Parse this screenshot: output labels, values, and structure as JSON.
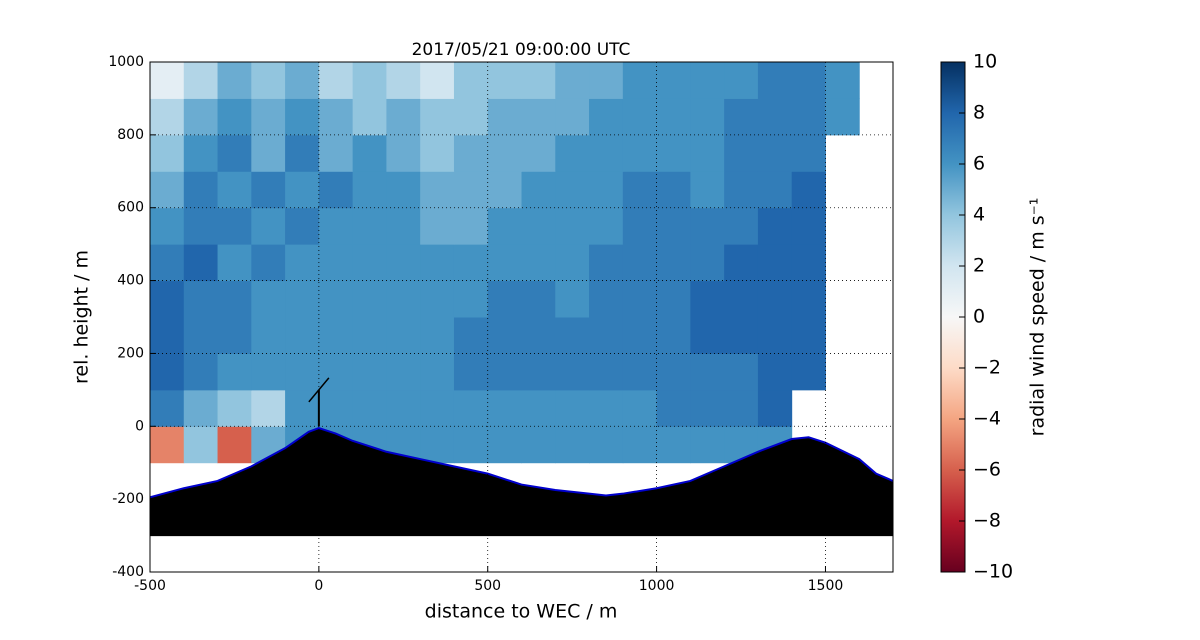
{
  "chart_data": {
    "type": "heatmap",
    "title": "2017/05/21 09:00:00 UTC",
    "x_label": "distance to WEC / m",
    "y_label": "rel. height / m",
    "xlim": [
      -500,
      1700
    ],
    "xticks": [
      -500,
      0,
      500,
      1000,
      1500
    ],
    "ylim": [
      -400,
      1000
    ],
    "yticks": [
      -400,
      -200,
      0,
      200,
      400,
      600,
      800,
      1000
    ],
    "grid": true,
    "x": [
      -450,
      -350,
      -250,
      -150,
      -50,
      50,
      150,
      250,
      350,
      450,
      550,
      650,
      750,
      850,
      950,
      1050,
      1150,
      1250,
      1350,
      1450,
      1550
    ],
    "y": [
      -50,
      50,
      150,
      250,
      350,
      450,
      550,
      650,
      750,
      850,
      950
    ],
    "values": [
      [
        -5,
        4,
        -6,
        5,
        6,
        6,
        6,
        6,
        6,
        6,
        6,
        6,
        6,
        6,
        6,
        6,
        6,
        6,
        6,
        null,
        null
      ],
      [
        7,
        5,
        4,
        3,
        6,
        6,
        6,
        6,
        6,
        6,
        6,
        6,
        6,
        6,
        6,
        7,
        7,
        7,
        8,
        null,
        null
      ],
      [
        8,
        7,
        6,
        6,
        6,
        6,
        6,
        6,
        6,
        7,
        7,
        7,
        7,
        7,
        7,
        7,
        7,
        7,
        8,
        8,
        null
      ],
      [
        8,
        7,
        7,
        6,
        6,
        6,
        6,
        6,
        6,
        7,
        7,
        7,
        7,
        7,
        7,
        7,
        8,
        8,
        8,
        8,
        null
      ],
      [
        8,
        7,
        7,
        6,
        6,
        6,
        6,
        6,
        6,
        6,
        7,
        7,
        6,
        7,
        7,
        7,
        8,
        8,
        8,
        8,
        null
      ],
      [
        7,
        8,
        6,
        7,
        6,
        6,
        6,
        6,
        6,
        6,
        6,
        6,
        6,
        7,
        7,
        7,
        7,
        8,
        8,
        8,
        null
      ],
      [
        6,
        7,
        7,
        6,
        7,
        6,
        6,
        6,
        5,
        5,
        6,
        6,
        6,
        6,
        7,
        7,
        7,
        7,
        8,
        8,
        null
      ],
      [
        5,
        7,
        6,
        7,
        6,
        7,
        6,
        6,
        5,
        5,
        5,
        6,
        6,
        6,
        7,
        7,
        6,
        7,
        7,
        8,
        null
      ],
      [
        4,
        6,
        7,
        5,
        7,
        5,
        6,
        5,
        4,
        5,
        5,
        5,
        6,
        6,
        6,
        6,
        6,
        7,
        7,
        7,
        null
      ],
      [
        3,
        5,
        6,
        5,
        6,
        5,
        4,
        5,
        4,
        4,
        5,
        5,
        5,
        6,
        6,
        6,
        6,
        7,
        7,
        7,
        6
      ],
      [
        1,
        3,
        5,
        4,
        5,
        3,
        4,
        3,
        2,
        4,
        4,
        4,
        5,
        5,
        6,
        6,
        6,
        6,
        7,
        7,
        6
      ]
    ],
    "terrain": {
      "x": [
        -500,
        -400,
        -300,
        -200,
        -100,
        -30,
        0,
        50,
        100,
        200,
        300,
        400,
        500,
        600,
        700,
        800,
        850,
        900,
        1000,
        1100,
        1200,
        1300,
        1400,
        1450,
        1500,
        1600,
        1650,
        1700
      ],
      "y": [
        -195,
        -170,
        -150,
        -110,
        -60,
        -15,
        -5,
        -20,
        -40,
        -70,
        -90,
        -110,
        -130,
        -160,
        -175,
        -185,
        -190,
        -185,
        -170,
        -150,
        -110,
        -70,
        -35,
        -30,
        -45,
        -90,
        -130,
        -150
      ],
      "base": -300,
      "color": "#000000",
      "edge_color": "#0000cc"
    },
    "wec": {
      "x": 0,
      "y": 0,
      "hub_height": 100
    },
    "colorbar": {
      "label": "radial wind speed / m s⁻¹",
      "clim": [
        -10,
        10
      ],
      "ticks": [
        10,
        8,
        6,
        4,
        2,
        0,
        {
          "value": -2,
          "label": "−2"
        },
        {
          "value": -4,
          "label": "−4"
        },
        {
          "value": -6,
          "label": "−6"
        },
        {
          "value": -8,
          "label": "−8"
        },
        {
          "value": -10,
          "label": "−10"
        }
      ]
    }
  }
}
